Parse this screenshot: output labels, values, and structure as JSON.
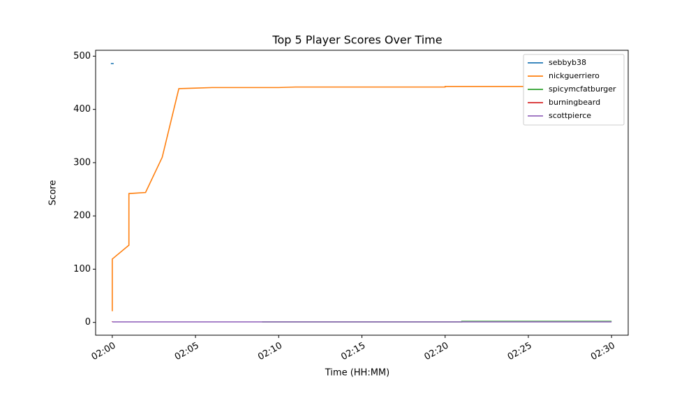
{
  "chart_data": {
    "type": "line",
    "title": "Top 5 Player Scores Over Time",
    "x_label": "Time (HH:MM)",
    "y_label": "Score",
    "xlim": [
      "01:59",
      "02:31"
    ],
    "xticks": [
      "02:00",
      "02:05",
      "02:10",
      "02:15",
      "02:20",
      "02:25",
      "02:30"
    ],
    "ylim": [
      -24,
      511
    ],
    "yticks": [
      0,
      100,
      200,
      300,
      400,
      500
    ],
    "grid": false,
    "legend": "upper right",
    "series": [
      {
        "name": "sebbyb38",
        "color": "#1f77b4",
        "x": [
          "02:00"
        ],
        "values": [
          486
        ]
      },
      {
        "name": "nickguerriero",
        "color": "#ff7f0e",
        "x": [
          "02:00",
          "02:00",
          "02:01",
          "02:01",
          "02:01",
          "02:02",
          "02:03",
          "02:04",
          "02:05",
          "02:06",
          "02:10",
          "02:11",
          "02:20",
          "02:20",
          "02:30"
        ],
        "values": [
          21,
          119,
          145,
          170,
          242,
          244,
          310,
          439,
          440,
          441,
          441,
          442,
          442,
          443,
          443
        ]
      },
      {
        "name": "spicymcfatburger",
        "color": "#2ca02c",
        "x": [
          "02:09",
          "02:21",
          "02:21",
          "02:30"
        ],
        "values": [
          1,
          1,
          2,
          2
        ]
      },
      {
        "name": "burningbeard",
        "color": "#d62728",
        "x": [
          "02:00",
          "02:00"
        ],
        "values": [
          2,
          1
        ]
      },
      {
        "name": "scottpierce",
        "color": "#9467bd",
        "x": [
          "02:00",
          "02:30"
        ],
        "values": [
          1,
          1
        ]
      }
    ]
  }
}
